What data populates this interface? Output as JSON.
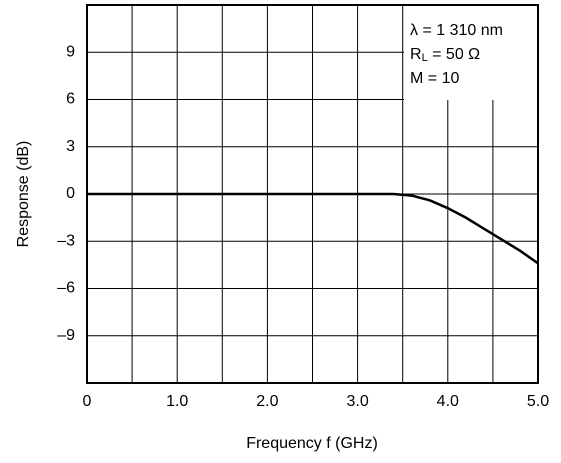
{
  "chart_data": {
    "type": "line",
    "x_label": "Frequency  f (GHz)",
    "y_label": "Response (dB)",
    "x": [
      0,
      1,
      2,
      3,
      3.4,
      3.6,
      3.8,
      4.0,
      4.2,
      4.4,
      4.6,
      4.8,
      5.0
    ],
    "series": [
      {
        "color": "#000000",
        "values": [
          0,
          0,
          0,
          0,
          0,
          -0.1,
          -0.4,
          -0.9,
          -1.5,
          -2.2,
          -2.9,
          -3.6,
          -4.4
        ]
      }
    ],
    "xlim": [
      0,
      5
    ],
    "ylim": [
      -12,
      12
    ],
    "xticks": [
      0,
      {
        "value": 1,
        "label": "1.0"
      },
      {
        "value": 2,
        "label": "2.0"
      },
      {
        "value": 3,
        "label": "3.0"
      },
      {
        "value": 4,
        "label": "4.0"
      },
      {
        "value": 5,
        "label": "5.0"
      }
    ],
    "xgrid": [
      0.5,
      1.5,
      2.5,
      3.5,
      4.5
    ],
    "yticks": [
      {
        "value": -9,
        "label": "–9"
      },
      {
        "value": -6,
        "label": "–6"
      },
      {
        "value": -3,
        "label": "–3"
      },
      0,
      3,
      6,
      9
    ],
    "grid": true,
    "annotations": [
      "λ = 1 310 nm",
      [
        "R",
        "L",
        " = 50 Ω"
      ],
      "M = 10"
    ]
  }
}
